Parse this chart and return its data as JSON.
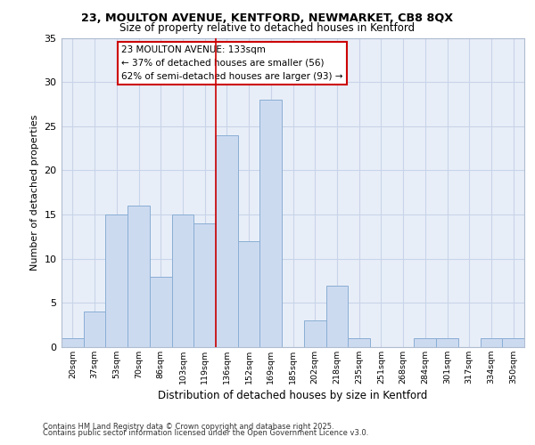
{
  "title1": "23, MOULTON AVENUE, KENTFORD, NEWMARKET, CB8 8QX",
  "title2": "Size of property relative to detached houses in Kentford",
  "xlabel": "Distribution of detached houses by size in Kentford",
  "ylabel": "Number of detached properties",
  "categories": [
    "20sqm",
    "37sqm",
    "53sqm",
    "70sqm",
    "86sqm",
    "103sqm",
    "119sqm",
    "136sqm",
    "152sqm",
    "169sqm",
    "185sqm",
    "202sqm",
    "218sqm",
    "235sqm",
    "251sqm",
    "268sqm",
    "284sqm",
    "301sqm",
    "317sqm",
    "334sqm",
    "350sqm"
  ],
  "values": [
    1,
    4,
    15,
    16,
    8,
    15,
    14,
    24,
    12,
    28,
    0,
    3,
    7,
    1,
    0,
    0,
    1,
    1,
    0,
    1,
    1
  ],
  "bar_color": "#ccdaf0",
  "bar_edge_color": "#89aed4",
  "grid_color": "#c8d4e8",
  "background_color": "#e8eef8",
  "vline_x": 7,
  "vline_color": "#cc0000",
  "annotation_title": "23 MOULTON AVENUE: 133sqm",
  "annotation_line1": "← 37% of detached houses are smaller (56)",
  "annotation_line2": "62% of semi-detached houses are larger (93) →",
  "annotation_box_color": "#cc0000",
  "footer1": "Contains HM Land Registry data © Crown copyright and database right 2025.",
  "footer2": "Contains public sector information licensed under the Open Government Licence v3.0.",
  "ylim": [
    0,
    35
  ],
  "yticks": [
    0,
    5,
    10,
    15,
    20,
    25,
    30,
    35
  ]
}
